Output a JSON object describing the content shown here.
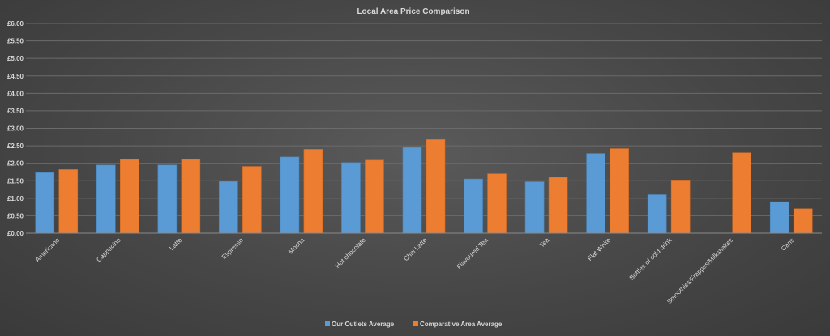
{
  "chart_data": {
    "type": "bar",
    "title": "Local Area Price Comparison",
    "categories": [
      "Americano",
      "Cappucino",
      "Latte",
      "Espresso",
      "Mocha",
      "Hot chocolate",
      "Chai Latte",
      "Flavoured Tea",
      "Tea",
      "Flat White",
      "Bottles of cold drink",
      "Smoothies/Frappes/Milkshakes",
      "Cans"
    ],
    "series": [
      {
        "name": "Our Outlets Average",
        "color": "#5b9bd5",
        "values": [
          1.73,
          1.95,
          1.95,
          1.48,
          2.18,
          2.02,
          2.45,
          1.55,
          1.47,
          2.28,
          1.1,
          null,
          0.9
        ]
      },
      {
        "name": "Comparative Area Average",
        "color": "#ed7d31",
        "values": [
          1.82,
          2.11,
          2.11,
          1.91,
          2.4,
          2.09,
          2.68,
          1.7,
          1.6,
          2.42,
          1.52,
          2.3,
          0.7
        ]
      }
    ],
    "ylim": [
      0,
      6
    ],
    "yticks": [
      "£0.00",
      "£0.50",
      "£1.00",
      "£1.50",
      "£2.00",
      "£2.50",
      "£3.00",
      "£3.50",
      "£4.00",
      "£4.50",
      "£5.00",
      "£5.50",
      "£6.00"
    ],
    "ystep": 0.5,
    "grid": true,
    "legend": "bottom"
  }
}
